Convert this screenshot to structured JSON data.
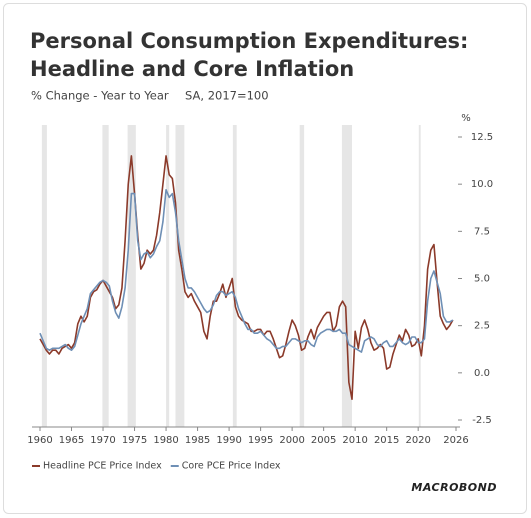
{
  "chart_data": {
    "type": "line",
    "title": [
      "Personal Consumption Expenditures:",
      "Headline and Core Inflation"
    ],
    "subtitle": [
      "% Change - Year to Year",
      "SA, 2017=100"
    ],
    "y_unit": "%",
    "source": "MACROBOND",
    "grid": false,
    "legend": "bottom-left",
    "recession_color": "#e6e6e6",
    "recessions": [
      [
        1960.3,
        1961.1
      ],
      [
        1969.9,
        1970.9
      ],
      [
        1973.9,
        1975.2
      ],
      [
        1980.0,
        1980.5
      ],
      [
        1981.5,
        1982.9
      ],
      [
        1990.6,
        1991.2
      ],
      [
        2001.2,
        2001.9
      ],
      [
        2007.9,
        2009.5
      ],
      [
        2020.1,
        2020.4
      ]
    ],
    "xlim": [
      1960,
      2026
    ],
    "xticks": [
      1960,
      1965,
      1970,
      1975,
      1980,
      1985,
      1990,
      1995,
      2000,
      2005,
      2010,
      2015,
      2020,
      2026
    ],
    "ylim": [
      -2.5,
      12.5
    ],
    "yticks": [
      12.5,
      {
        "value": 10,
        "label": "10.0"
      },
      7.5,
      {
        "value": 5,
        "label": "5.0"
      },
      2.5,
      {
        "value": 0,
        "label": "0.0"
      },
      -2.5
    ],
    "x": [
      1960,
      1960.5,
      1961,
      1961.5,
      1962,
      1962.5,
      1963,
      1963.5,
      1964,
      1964.5,
      1965,
      1965.5,
      1966,
      1966.5,
      1967,
      1967.5,
      1968,
      1968.5,
      1969,
      1969.5,
      1970,
      1970.5,
      1971,
      1971.5,
      1972,
      1972.5,
      1973,
      1973.5,
      1974,
      1974.5,
      1975,
      1975.5,
      1976,
      1976.5,
      1977,
      1977.5,
      1978,
      1978.5,
      1979,
      1979.5,
      1980,
      1980.5,
      1981,
      1981.5,
      1982,
      1982.5,
      1983,
      1983.5,
      1984,
      1984.5,
      1985,
      1985.5,
      1986,
      1986.5,
      1987,
      1987.5,
      1988,
      1988.5,
      1989,
      1989.5,
      1990,
      1990.5,
      1991,
      1991.5,
      1992,
      1992.5,
      1993,
      1993.5,
      1994,
      1994.5,
      1995,
      1995.5,
      1996,
      1996.5,
      1997,
      1997.5,
      1998,
      1998.5,
      1999,
      1999.5,
      2000,
      2000.5,
      2001,
      2001.5,
      2002,
      2002.5,
      2003,
      2003.5,
      2004,
      2004.5,
      2005,
      2005.5,
      2006,
      2006.5,
      2007,
      2007.5,
      2008,
      2008.5,
      2009,
      2009.5,
      2010,
      2010.5,
      2011,
      2011.5,
      2012,
      2012.5,
      2013,
      2013.5,
      2014,
      2014.5,
      2015,
      2015.5,
      2016,
      2016.5,
      2017,
      2017.5,
      2018,
      2018.5,
      2019,
      2019.5,
      2020,
      2020.5,
      2021,
      2021.5,
      2022,
      2022.5,
      2023,
      2023.5,
      2024,
      2024.5,
      2025,
      2025.5
    ],
    "series": [
      {
        "name": "Headline PCE Price Index",
        "color": "#8b3a2a",
        "values": [
          1.8,
          1.5,
          1.2,
          1.0,
          1.2,
          1.2,
          1.0,
          1.3,
          1.4,
          1.5,
          1.3,
          1.6,
          2.6,
          3.0,
          2.7,
          3.0,
          4.0,
          4.3,
          4.4,
          4.7,
          4.9,
          4.6,
          4.3,
          4.0,
          3.4,
          3.6,
          4.5,
          7.0,
          10.0,
          11.5,
          9.5,
          7.3,
          5.5,
          5.8,
          6.5,
          6.3,
          6.5,
          7.3,
          8.5,
          10.0,
          11.5,
          10.5,
          10.3,
          9.0,
          6.5,
          5.5,
          4.3,
          4.0,
          4.2,
          3.8,
          3.5,
          3.2,
          2.2,
          1.8,
          3.0,
          3.8,
          3.8,
          4.2,
          4.7,
          4.0,
          4.5,
          5.0,
          3.5,
          3.0,
          2.8,
          2.7,
          2.6,
          2.2,
          2.2,
          2.3,
          2.3,
          2.0,
          2.2,
          2.2,
          1.8,
          1.3,
          0.8,
          0.9,
          1.5,
          2.2,
          2.8,
          2.5,
          2.0,
          1.2,
          1.3,
          1.9,
          2.3,
          1.8,
          2.4,
          2.7,
          3.0,
          3.2,
          3.2,
          2.2,
          2.5,
          3.5,
          3.8,
          3.5,
          -0.5,
          -1.4,
          2.2,
          1.3,
          2.4,
          2.8,
          2.3,
          1.6,
          1.2,
          1.3,
          1.5,
          1.3,
          0.2,
          0.3,
          1.0,
          1.5,
          2.0,
          1.7,
          2.3,
          2.0,
          1.4,
          1.5,
          1.8,
          0.9,
          2.5,
          5.5,
          6.5,
          6.8,
          4.8,
          3.0,
          2.6,
          2.3,
          2.5,
          2.8
        ]
      },
      {
        "name": "Core PCE Price Index",
        "color": "#6e8fb5",
        "values": [
          2.1,
          1.7,
          1.3,
          1.2,
          1.3,
          1.3,
          1.3,
          1.4,
          1.5,
          1.3,
          1.2,
          1.4,
          2.0,
          2.6,
          3.0,
          3.4,
          4.2,
          4.4,
          4.6,
          4.8,
          4.9,
          4.8,
          4.6,
          3.8,
          3.2,
          2.9,
          3.5,
          4.5,
          6.5,
          9.5,
          9.5,
          7.0,
          6.0,
          6.3,
          6.4,
          6.1,
          6.3,
          6.7,
          7.0,
          8.0,
          9.7,
          9.3,
          9.5,
          8.5,
          7.0,
          6.0,
          5.0,
          4.5,
          4.5,
          4.3,
          4.0,
          3.7,
          3.4,
          3.2,
          3.3,
          3.6,
          4.1,
          4.3,
          4.3,
          4.1,
          4.2,
          4.3,
          4.0,
          3.4,
          3.0,
          2.6,
          2.3,
          2.3,
          2.1,
          2.1,
          2.2,
          2.0,
          1.8,
          1.7,
          1.5,
          1.3,
          1.3,
          1.4,
          1.4,
          1.6,
          1.8,
          1.8,
          1.7,
          1.6,
          1.7,
          1.7,
          1.5,
          1.4,
          1.9,
          2.1,
          2.2,
          2.3,
          2.3,
          2.2,
          2.2,
          2.3,
          2.1,
          2.1,
          1.5,
          1.4,
          1.3,
          1.2,
          1.1,
          1.7,
          1.8,
          1.9,
          1.8,
          1.5,
          1.4,
          1.6,
          1.7,
          1.4,
          1.4,
          1.6,
          1.8,
          1.6,
          1.5,
          1.6,
          1.9,
          1.9,
          1.6,
          1.6,
          1.8,
          3.8,
          5.0,
          5.4,
          4.8,
          4.2,
          3.0,
          2.7,
          2.7,
          2.8
        ]
      }
    ]
  }
}
